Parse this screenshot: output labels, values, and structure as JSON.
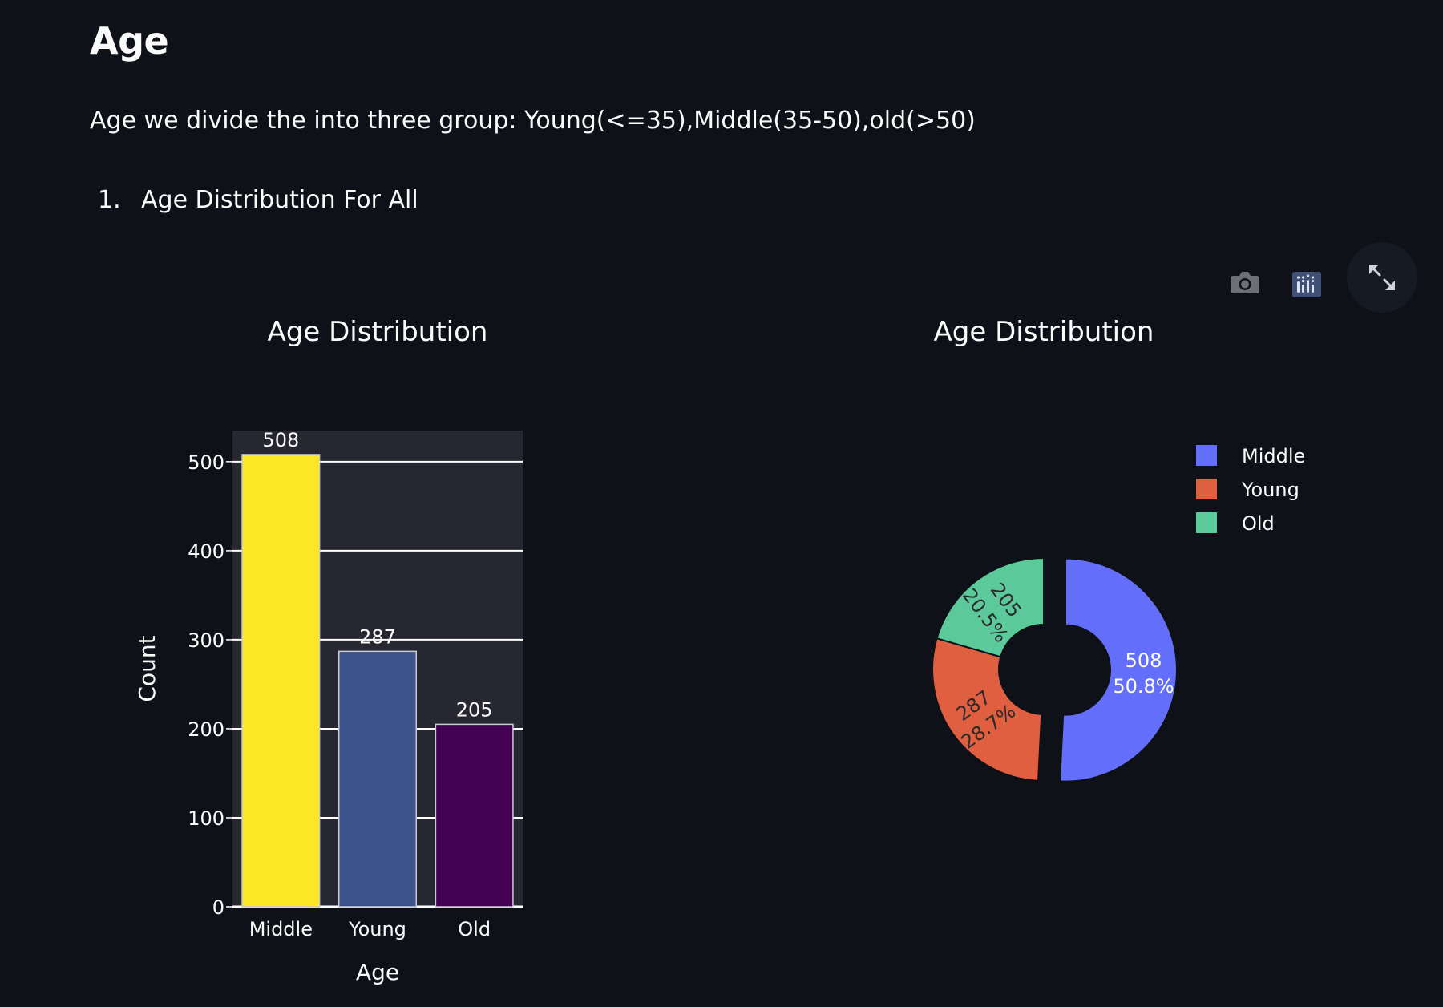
{
  "page": {
    "title": "Age",
    "intro": "Age we divide the into three group: Young(<=35),Middle(35-50),old(>50)",
    "list_items": [
      {
        "number": "1.",
        "text": "Age Distribution For All"
      }
    ]
  },
  "toolbar": {
    "camera_icon": "camera-icon",
    "plotly_icon": "plotly-logo-icon",
    "fullscreen_icon": "fullscreen-icon"
  },
  "chart_data": [
    {
      "type": "bar",
      "title": "Age Distribution",
      "xlabel": "Age",
      "ylabel": "Count",
      "categories": [
        "Middle",
        "Young",
        "Old"
      ],
      "values": [
        508,
        287,
        205
      ],
      "data_labels": [
        "508",
        "287",
        "205"
      ],
      "colors": [
        "#fde725",
        "#3b528b",
        "#440154"
      ],
      "ylim": [
        0,
        535
      ],
      "yticks": [
        0,
        100,
        200,
        300,
        400,
        500
      ],
      "grid": true,
      "plot_bgcolor": "#262730"
    },
    {
      "type": "pie",
      "title": "Age Distribution",
      "hole": true,
      "labels": [
        "Middle",
        "Young",
        "Old"
      ],
      "values": [
        508,
        287,
        205
      ],
      "value_labels": [
        "508",
        "287",
        "205"
      ],
      "percent_labels": [
        "50.8%",
        "28.7%",
        "20.5%"
      ],
      "colors": [
        "#636efa",
        "#e15f41",
        "#5bc99a"
      ],
      "pulled_slice": "Middle",
      "legend": "top-right"
    }
  ]
}
